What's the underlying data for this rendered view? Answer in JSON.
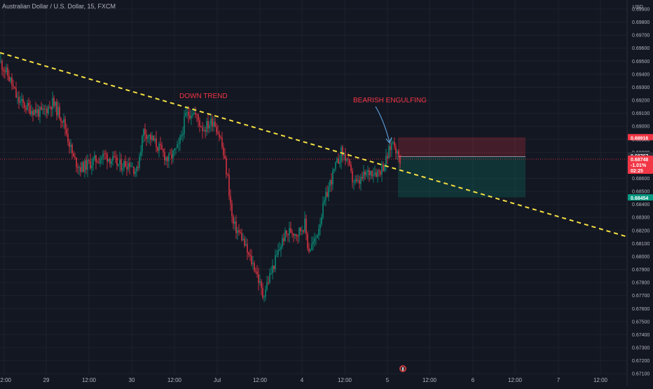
{
  "header": {
    "symbol": "Australian Dollar / U.S. Dollar, 15, FXCM"
  },
  "axis": {
    "currency": "USD"
  },
  "price_scale": {
    "min": 0.6709,
    "max": 0.6997
  },
  "chart_data": {
    "type": "candlestick",
    "title": "Australian Dollar / U.S. Dollar, 15, FXCM",
    "ylabel": "USD",
    "y_ticks": [
      "0.69900",
      "0.69800",
      "0.69700",
      "0.69600",
      "0.69500",
      "0.69400",
      "0.69300",
      "0.69200",
      "0.69100",
      "0.69000",
      "0.68900",
      "0.68800",
      "0.68600",
      "0.68500",
      "0.68400",
      "0.68300",
      "0.68200",
      "0.68100",
      "0.68000",
      "0.67900",
      "0.67800",
      "0.67700",
      "0.67600",
      "0.67500",
      "0.67400",
      "0.67300",
      "0.67200",
      "0.67100"
    ],
    "x_ticks": [
      "12:00",
      "29",
      "12:00",
      "30",
      "12:00",
      "Jul",
      "12:00",
      "4",
      "12:00",
      "5",
      "12:00",
      "6",
      "12:00",
      "7",
      "12:00"
    ],
    "price_path": [
      [
        0,
        0.695
      ],
      [
        15,
        0.6935
      ],
      [
        25,
        0.692
      ],
      [
        40,
        0.6914
      ],
      [
        60,
        0.691
      ],
      [
        75,
        0.6918
      ],
      [
        90,
        0.6905
      ],
      [
        105,
        0.6875
      ],
      [
        115,
        0.6868
      ],
      [
        130,
        0.6872
      ],
      [
        150,
        0.6878
      ],
      [
        170,
        0.687
      ],
      [
        185,
        0.6872
      ],
      [
        195,
        0.6865
      ],
      [
        205,
        0.6897
      ],
      [
        220,
        0.6888
      ],
      [
        240,
        0.6874
      ],
      [
        255,
        0.6884
      ],
      [
        265,
        0.6908
      ],
      [
        275,
        0.6912
      ],
      [
        290,
        0.6898
      ],
      [
        305,
        0.6905
      ],
      [
        315,
        0.689
      ],
      [
        325,
        0.686
      ],
      [
        332,
        0.6825
      ],
      [
        345,
        0.6815
      ],
      [
        355,
        0.68
      ],
      [
        365,
        0.679
      ],
      [
        375,
        0.677
      ],
      [
        385,
        0.6785
      ],
      [
        395,
        0.68
      ],
      [
        405,
        0.6815
      ],
      [
        415,
        0.682
      ],
      [
        425,
        0.6818
      ],
      [
        435,
        0.6825
      ],
      [
        440,
        0.6805
      ],
      [
        450,
        0.6812
      ],
      [
        460,
        0.6835
      ],
      [
        470,
        0.6855
      ],
      [
        480,
        0.687
      ],
      [
        487,
        0.688
      ],
      [
        495,
        0.6875
      ],
      [
        502,
        0.686
      ],
      [
        510,
        0.6855
      ],
      [
        520,
        0.6862
      ],
      [
        530,
        0.6866
      ],
      [
        540,
        0.6865
      ],
      [
        550,
        0.6872
      ],
      [
        557,
        0.6884
      ],
      [
        562,
        0.689
      ],
      [
        567,
        0.6878
      ],
      [
        571,
        0.6875
      ]
    ],
    "trendline": {
      "style": "dashed",
      "color": "#f5e042",
      "start": [
        0,
        0.69565
      ],
      "end": [
        893,
        0.68155
      ]
    },
    "position": {
      "type": "short",
      "stop": "0.68916",
      "entry": "0.68767",
      "target": "0.68454",
      "stop_color": "#f23645",
      "target_color": "#089981"
    },
    "current_price": {
      "value": "0.68748",
      "change": "-1.01%",
      "countdown": "02:25"
    },
    "annotations": [
      {
        "text": "DOWN TREND",
        "color": "#f23645"
      },
      {
        "text": "BEARISH ENGULFING",
        "color": "#f23645"
      }
    ],
    "grid": true,
    "colors": {
      "up": "#089981",
      "down": "#f23645",
      "background": "#131722",
      "grid": "#1e222d",
      "text": "#b2b5be"
    }
  }
}
